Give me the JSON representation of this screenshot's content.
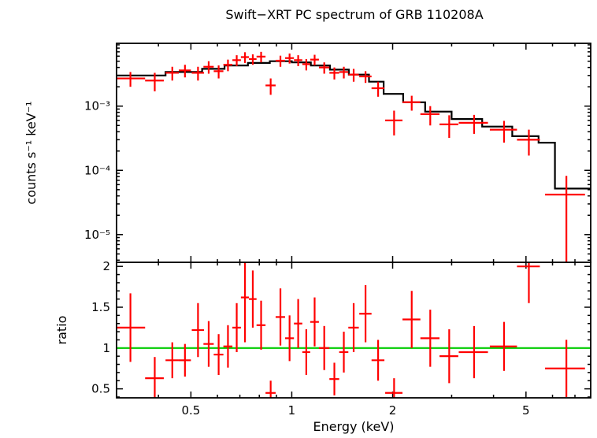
{
  "chart_data": {
    "type": "scatter",
    "title": "Swift−XRT PC spectrum of GRB 110208A",
    "xlabel": "Energy (keV)",
    "xscale": "log",
    "xlim": [
      0.3,
      7.8
    ],
    "x_tick_labels": [
      {
        "value": 0.5,
        "label": "0.5"
      },
      {
        "value": 1,
        "label": "1"
      },
      {
        "value": 2,
        "label": "2"
      },
      {
        "value": 5,
        "label": "5"
      }
    ],
    "point_columns": [
      "energy_keV",
      "energy_err_keV",
      "value",
      "value_err"
    ],
    "step_columns": [
      "energy_lo_keV",
      "energy_hi_keV",
      "model_value"
    ],
    "panels": [
      {
        "name": "spectrum",
        "ylabel": "counts s⁻¹ keV⁻¹",
        "yscale": "log",
        "ylim": [
          3.7e-06,
          0.0095
        ],
        "y_tick_labels": [
          {
            "value": 0.001,
            "label": "10⁻³"
          },
          {
            "value": 0.0001,
            "label": "10⁻⁴"
          },
          {
            "value": 1e-05,
            "label": "10⁻⁵"
          }
        ],
        "series": [
          {
            "name": "data",
            "style": "errorbar",
            "color": "#ff0000",
            "points": [
              [
                0.33,
                0.035,
                0.0027,
                0.0007
              ],
              [
                0.39,
                0.025,
                0.0025,
                0.0008
              ],
              [
                0.44,
                0.02,
                0.0033,
                0.0008
              ],
              [
                0.48,
                0.02,
                0.0036,
                0.0008
              ],
              [
                0.525,
                0.022,
                0.0033,
                0.0008
              ],
              [
                0.565,
                0.02,
                0.0041,
                0.0009
              ],
              [
                0.605,
                0.02,
                0.0035,
                0.0008
              ],
              [
                0.645,
                0.02,
                0.0044,
                0.0009
              ],
              [
                0.685,
                0.02,
                0.0052,
                0.001
              ],
              [
                0.725,
                0.02,
                0.0058,
                0.0011
              ],
              [
                0.765,
                0.02,
                0.0054,
                0.001
              ],
              [
                0.81,
                0.025,
                0.0059,
                0.0011
              ],
              [
                0.865,
                0.03,
                0.0021,
                0.0006
              ],
              [
                0.925,
                0.03,
                0.0051,
                0.001
              ],
              [
                0.985,
                0.03,
                0.0056,
                0.001
              ],
              [
                1.045,
                0.03,
                0.0052,
                0.001
              ],
              [
                1.105,
                0.03,
                0.0045,
                0.0009
              ],
              [
                1.17,
                0.035,
                0.0053,
                0.001
              ],
              [
                1.25,
                0.045,
                0.004,
                0.0008
              ],
              [
                1.34,
                0.045,
                0.0033,
                0.0007
              ],
              [
                1.43,
                0.045,
                0.0034,
                0.0007
              ],
              [
                1.53,
                0.055,
                0.0031,
                0.0007
              ],
              [
                1.66,
                0.07,
                0.0029,
                0.0006
              ],
              [
                1.81,
                0.08,
                0.0019,
                0.0005
              ],
              [
                2.02,
                0.12,
                0.0006,
                0.00025
              ],
              [
                2.28,
                0.14,
                0.00115,
                0.0003
              ],
              [
                2.59,
                0.17,
                0.00075,
                0.00025
              ],
              [
                2.95,
                0.19,
                0.00052,
                0.0002
              ],
              [
                3.5,
                0.35,
                0.00055,
                0.00018
              ],
              [
                4.3,
                0.4,
                0.00043,
                0.00016
              ],
              [
                5.1,
                0.4,
                0.0003,
                0.00013
              ],
              [
                6.6,
                0.9,
                4.2e-05,
                4e-05
              ]
            ]
          },
          {
            "name": "model",
            "style": "step",
            "color": "#000000",
            "steps": [
              [
                0.3,
                0.42,
                0.003
              ],
              [
                0.42,
                0.54,
                0.0034
              ],
              [
                0.54,
                0.63,
                0.0038
              ],
              [
                0.63,
                0.74,
                0.0043
              ],
              [
                0.74,
                0.86,
                0.0047
              ],
              [
                0.86,
                1.0,
                0.005
              ],
              [
                1.0,
                1.14,
                0.0048
              ],
              [
                1.14,
                1.3,
                0.0043
              ],
              [
                1.3,
                1.48,
                0.0037
              ],
              [
                1.48,
                1.7,
                0.0031
              ],
              [
                1.7,
                1.88,
                0.0024
              ],
              [
                1.88,
                2.15,
                0.00155
              ],
              [
                2.15,
                2.5,
                0.00115
              ],
              [
                2.5,
                3.0,
                0.00082
              ],
              [
                3.0,
                3.7,
                0.00063
              ],
              [
                3.7,
                4.55,
                0.00048
              ],
              [
                4.55,
                5.45,
                0.00034
              ],
              [
                5.45,
                6.1,
                0.00027
              ],
              [
                6.1,
                7.8,
                5.2e-05
              ]
            ]
          }
        ]
      },
      {
        "name": "ratio",
        "ylabel": "ratio",
        "yscale": "linear",
        "ylim": [
          0.39,
          2.05
        ],
        "y_tick_labels": [
          {
            "value": 0.5,
            "label": "0.5"
          },
          {
            "value": 1,
            "label": "1"
          },
          {
            "value": 1.5,
            "label": "1.5"
          },
          {
            "value": 2,
            "label": "2"
          }
        ],
        "reference_line": {
          "y": 1,
          "color": "#00cc00"
        },
        "series": [
          {
            "name": "data",
            "style": "errorbar",
            "color": "#ff0000",
            "points": [
              [
                0.33,
                0.035,
                1.25,
                0.42
              ],
              [
                0.39,
                0.025,
                0.63,
                0.26
              ],
              [
                0.44,
                0.02,
                0.85,
                0.22
              ],
              [
                0.48,
                0.02,
                0.85,
                0.2
              ],
              [
                0.525,
                0.022,
                1.22,
                0.33
              ],
              [
                0.565,
                0.02,
                1.05,
                0.28
              ],
              [
                0.605,
                0.02,
                0.92,
                0.25
              ],
              [
                0.645,
                0.02,
                1.02,
                0.26
              ],
              [
                0.685,
                0.02,
                1.25,
                0.3
              ],
              [
                0.725,
                0.02,
                1.62,
                0.55
              ],
              [
                0.765,
                0.02,
                1.6,
                0.35
              ],
              [
                0.81,
                0.025,
                1.28,
                0.3
              ],
              [
                0.865,
                0.03,
                0.45,
                0.15
              ],
              [
                0.925,
                0.03,
                1.38,
                0.35
              ],
              [
                0.985,
                0.03,
                1.12,
                0.28
              ],
              [
                1.045,
                0.03,
                1.3,
                0.3
              ],
              [
                1.105,
                0.03,
                0.95,
                0.28
              ],
              [
                1.17,
                0.035,
                1.32,
                0.3
              ],
              [
                1.25,
                0.045,
                1.0,
                0.27
              ],
              [
                1.34,
                0.045,
                0.62,
                0.2
              ],
              [
                1.43,
                0.045,
                0.95,
                0.25
              ],
              [
                1.53,
                0.055,
                1.25,
                0.3
              ],
              [
                1.66,
                0.07,
                1.42,
                0.35
              ],
              [
                1.81,
                0.08,
                0.85,
                0.25
              ],
              [
                2.02,
                0.12,
                0.45,
                0.18
              ],
              [
                2.28,
                0.14,
                1.35,
                0.35
              ],
              [
                2.59,
                0.17,
                1.12,
                0.35
              ],
              [
                2.95,
                0.19,
                0.9,
                0.33
              ],
              [
                3.5,
                0.35,
                0.95,
                0.32
              ],
              [
                4.3,
                0.4,
                1.02,
                0.3
              ],
              [
                5.1,
                0.4,
                2.0,
                0.45
              ],
              [
                6.6,
                0.9,
                0.75,
                0.35
              ]
            ]
          }
        ]
      }
    ]
  }
}
